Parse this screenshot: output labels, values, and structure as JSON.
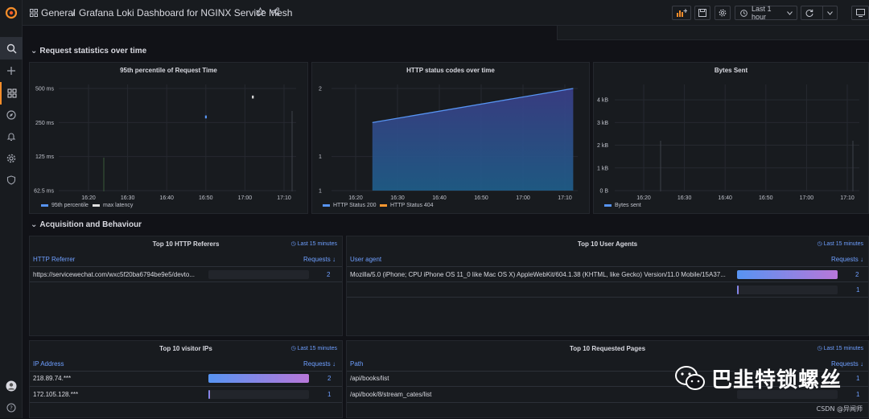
{
  "topbar": {
    "breadcrumb_folder": "General",
    "breadcrumb_sep": "/",
    "breadcrumb_title": "Grafana Loki Dashboard for NGINX Service Mesh",
    "time_range": "Last 1 hour"
  },
  "rows": {
    "row1": "Request statistics over time",
    "row2": "Acquisition and Behaviour"
  },
  "panels": {
    "request_time": {
      "title": "95th percentile of Request Time",
      "legend": [
        "95th percentile",
        "max latency"
      ]
    },
    "status_codes": {
      "title": "HTTP status codes over time",
      "legend": [
        "HTTP Status 200",
        "HTTP Status 404"
      ]
    },
    "bytes_sent": {
      "title": "Bytes Sent",
      "legend": [
        "Bytes sent"
      ]
    },
    "referers": {
      "title": "Top 10 HTTP Referers",
      "time": "Last 15 minutes",
      "col1": "HTTP Referrer",
      "col2": "Requests",
      "rows": [
        {
          "name": "https://servicewechat.com/wxc5f20ba6794be9e5/devto...",
          "value": "2",
          "fill": 0
        }
      ]
    },
    "user_agents": {
      "title": "Top 10 User Agents",
      "time": "Last 15 minutes",
      "col1": "User agent",
      "col2": "Requests",
      "rows": [
        {
          "name": "Mozilla/5.0 (iPhone; CPU iPhone OS 11_0 like Mac OS X) AppleWebKit/604.1.38 (KHTML, like Gecko) Version/11.0 Mobile/15A37...",
          "value": "2",
          "fill": 1
        },
        {
          "name": "",
          "value": "1",
          "fill": 0
        }
      ]
    },
    "visitor_ips": {
      "title": "Top 10 visitor IPs",
      "time": "Last 15 minutes",
      "col1": "IP Address",
      "col2": "Requests",
      "rows": [
        {
          "name": "218.89.74.***",
          "value": "2",
          "fill": 1
        },
        {
          "name": "172.105.128.***",
          "value": "1",
          "fill": 0
        }
      ]
    },
    "pages": {
      "title": "Top 10 Requested Pages",
      "time": "Last 15 minutes",
      "col1": "Path",
      "col2": "Requests",
      "rows": [
        {
          "name": "/api/books/list",
          "value": "1"
        },
        {
          "name": "/api/book/8/stream_cates/list",
          "value": "1"
        }
      ]
    }
  },
  "chart_data": [
    {
      "type": "scatter",
      "title": "95th percentile of Request Time",
      "x_ticks": [
        "16:20",
        "16:30",
        "16:40",
        "16:50",
        "17:00",
        "17:10"
      ],
      "y_ticks": [
        "62.5 ms",
        "125 ms",
        "250 ms",
        "500 ms"
      ],
      "y_scale": "log2",
      "series": [
        {
          "name": "95th percentile",
          "color": "#5794f2",
          "points": [
            {
              "x": "16:50",
              "y": 280
            }
          ]
        },
        {
          "name": "max latency",
          "color": "#e0e0e0",
          "points": [
            {
              "x": "17:02",
              "y": 420
            }
          ]
        }
      ]
    },
    {
      "type": "area",
      "title": "HTTP status codes over time",
      "x_ticks": [
        "16:20",
        "16:30",
        "16:40",
        "16:50",
        "17:00",
        "17:10"
      ],
      "y_ticks": [
        "1",
        "1",
        "2"
      ],
      "ylim": [
        1,
        2
      ],
      "series": [
        {
          "name": "HTTP Status 200",
          "color": "#5794f2",
          "points": [
            {
              "x": "16:24",
              "y": 1
            },
            {
              "x": "16:24",
              "y": 1.5
            },
            {
              "x": "17:12",
              "y": 2
            }
          ]
        },
        {
          "name": "HTTP Status 404",
          "color": "#ff9830",
          "points": []
        }
      ]
    },
    {
      "type": "line",
      "title": "Bytes Sent",
      "x_ticks": [
        "16:20",
        "16:30",
        "16:40",
        "16:50",
        "17:00",
        "17:10"
      ],
      "y_ticks": [
        "0 B",
        "1 kB",
        "2 kB",
        "3 kB",
        "4 kB"
      ],
      "ylim": [
        0,
        4.5
      ],
      "series": [
        {
          "name": "Bytes sent",
          "color": "#5794f2",
          "points": []
        }
      ]
    }
  ],
  "watermark": {
    "text": "巴韭特锁螺丝",
    "credit": "CSDN @异闻师"
  }
}
